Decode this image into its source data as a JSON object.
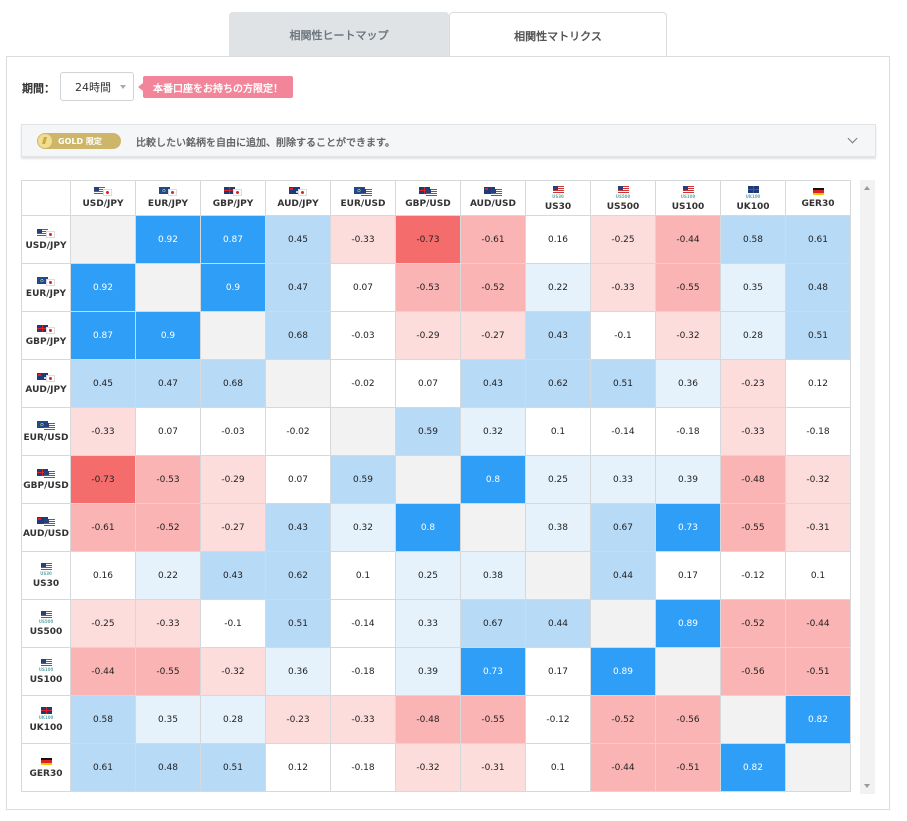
{
  "tabs": [
    {
      "label": "相関性ヒートマップ",
      "active": false
    },
    {
      "label": "相関性マトリクス",
      "active": true
    }
  ],
  "period": {
    "label": "期間：",
    "value": "24時間"
  },
  "badge": "本番口座をお持ちの方限定！",
  "gold": {
    "pill": "GOLD 限定",
    "text": "比較したい銘柄を自由に追加、削除することができます。"
  },
  "symbols": [
    {
      "name": "USD/JPY",
      "flag": "usjp",
      "sub": ""
    },
    {
      "name": "EUR/JPY",
      "flag": "eujp",
      "sub": ""
    },
    {
      "name": "GBP/JPY",
      "flag": "gbjp",
      "sub": ""
    },
    {
      "name": "AUD/JPY",
      "flag": "aujp",
      "sub": ""
    },
    {
      "name": "EUR/USD",
      "flag": "euus",
      "sub": ""
    },
    {
      "name": "GBP/USD",
      "flag": "gbus",
      "sub": ""
    },
    {
      "name": "AUD/USD",
      "flag": "auus",
      "sub": ""
    },
    {
      "name": "US30",
      "flag": "us",
      "sub": "US30"
    },
    {
      "name": "US500",
      "flag": "us",
      "sub": "US500"
    },
    {
      "name": "US100",
      "flag": "us",
      "sub": "US100"
    },
    {
      "name": "UK100",
      "flag": "gb",
      "sub": "UK100"
    },
    {
      "name": "GER30",
      "flag": "de",
      "sub": ""
    }
  ],
  "matrix": [
    [
      null,
      0.92,
      0.87,
      0.45,
      -0.33,
      -0.73,
      -0.61,
      0.16,
      -0.25,
      -0.44,
      0.58,
      0.61
    ],
    [
      0.92,
      null,
      0.9,
      0.47,
      0.07,
      -0.53,
      -0.52,
      0.22,
      -0.33,
      -0.55,
      0.35,
      0.48
    ],
    [
      0.87,
      0.9,
      null,
      0.68,
      -0.03,
      -0.29,
      -0.27,
      0.43,
      -0.1,
      -0.32,
      0.28,
      0.51
    ],
    [
      0.45,
      0.47,
      0.68,
      null,
      -0.02,
      0.07,
      0.43,
      0.62,
      0.51,
      0.36,
      -0.23,
      0.12
    ],
    [
      -0.33,
      0.07,
      -0.03,
      -0.02,
      null,
      0.59,
      0.32,
      0.1,
      -0.14,
      -0.18,
      -0.33,
      -0.18
    ],
    [
      -0.73,
      -0.53,
      -0.29,
      0.07,
      0.59,
      null,
      0.8,
      0.25,
      0.33,
      0.39,
      -0.48,
      -0.32
    ],
    [
      -0.61,
      -0.52,
      -0.27,
      0.43,
      0.32,
      0.8,
      null,
      0.38,
      0.67,
      0.73,
      -0.55,
      -0.31
    ],
    [
      0.16,
      0.22,
      0.43,
      0.62,
      0.1,
      0.25,
      0.38,
      null,
      0.44,
      0.17,
      -0.12,
      0.1
    ],
    [
      -0.25,
      -0.33,
      -0.1,
      0.51,
      -0.14,
      0.33,
      0.67,
      0.44,
      null,
      0.89,
      -0.52,
      -0.44
    ],
    [
      -0.44,
      -0.55,
      -0.32,
      0.36,
      -0.18,
      0.39,
      0.73,
      0.17,
      0.89,
      null,
      -0.56,
      -0.51
    ],
    [
      0.58,
      0.35,
      0.28,
      -0.23,
      -0.33,
      -0.48,
      -0.55,
      -0.12,
      -0.52,
      -0.56,
      null,
      0.82
    ],
    [
      0.61,
      0.48,
      0.51,
      0.12,
      -0.18,
      -0.32,
      -0.31,
      0.1,
      -0.44,
      -0.51,
      0.82,
      null
    ]
  ],
  "colors": {
    "pos_strong": "#2e9ef7",
    "pos_mid": "#b7daf7",
    "pos_weak": "#e6f2fb",
    "neutral": "#ffffff",
    "neg_weak": "#fddcdc",
    "neg_mid": "#fbb4b4",
    "neg_strong": "#f56c6c",
    "diagonal": "#f2f2f2"
  }
}
